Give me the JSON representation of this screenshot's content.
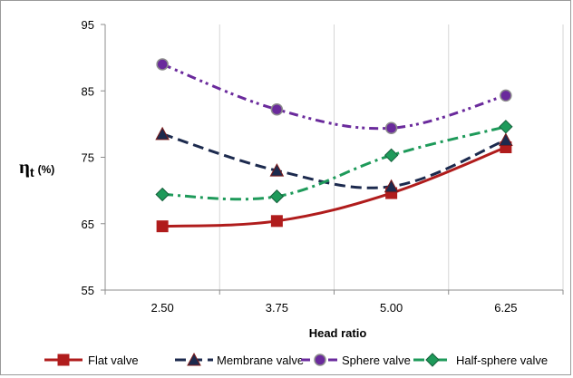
{
  "chart_data": {
    "type": "line",
    "categories": [
      "2.50",
      "3.75",
      "5.00",
      "6.25"
    ],
    "xlabel": "Head ratio",
    "ylabel_main": "η",
    "ylabel_sub": "t",
    "ylabel_unit": "(%)",
    "ylim": [
      55,
      95
    ],
    "yticks": [
      "55",
      "65",
      "75",
      "85",
      "95"
    ],
    "legend_position": "bottom",
    "grid": "vertical",
    "series": [
      {
        "name": "Flat valve",
        "values": [
          64.6,
          65.4,
          69.6,
          76.5
        ],
        "color": "#b01c1c",
        "marker": "square",
        "dash": "solid",
        "icon": "square-marker-icon"
      },
      {
        "name": "Membrane valve",
        "values": [
          78.5,
          73.0,
          70.6,
          77.6
        ],
        "color": "#1c2a4e",
        "marker": "triangle",
        "dash": "dash",
        "icon": "triangle-marker-icon"
      },
      {
        "name": "Sphere valve",
        "values": [
          89.0,
          82.2,
          79.4,
          84.3
        ],
        "color": "#6a2a9c",
        "marker": "circle",
        "dash": "dashdotdot",
        "icon": "circle-marker-icon"
      },
      {
        "name": "Half-sphere valve",
        "values": [
          69.4,
          69.1,
          75.3,
          79.6
        ],
        "color": "#1e9a5a",
        "marker": "diamond",
        "dash": "dashdot",
        "icon": "diamond-marker-icon"
      }
    ]
  }
}
